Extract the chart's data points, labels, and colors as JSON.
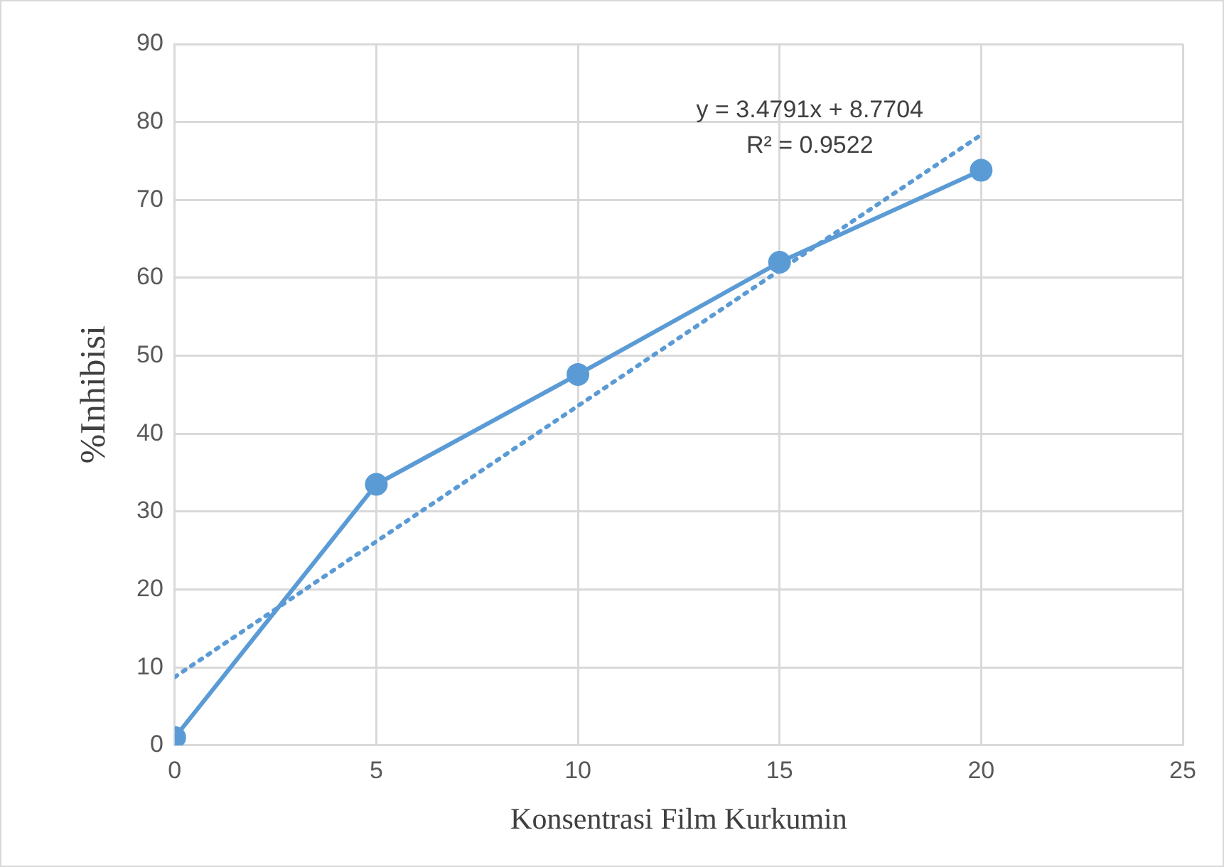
{
  "chart_data": {
    "type": "line",
    "xlabel": "Konsentrasi Film Kurkumin",
    "ylabel": "%Inhibisi",
    "x": [
      0,
      5,
      10,
      15,
      20
    ],
    "series": [
      {
        "color": "#5b9bd5",
        "values": [
          1.0,
          33.5,
          47.6,
          62.0,
          73.8
        ],
        "marker": "circle",
        "line_style": "solid"
      },
      {
        "type": "line",
        "color": "#5b9bd5",
        "x": [
          0,
          20
        ],
        "values": [
          8.77,
          78.35
        ],
        "marker": "none",
        "line_style": "dotted"
      }
    ],
    "xlim": [
      0,
      25
    ],
    "xticks": [
      0,
      5,
      10,
      15,
      20,
      25
    ],
    "ylim": [
      0,
      90
    ],
    "yticks": [
      0,
      10,
      20,
      30,
      40,
      50,
      60,
      70,
      80,
      90
    ],
    "grid": true,
    "legend": false,
    "annotations": [
      "y = 3.4791x + 8.7704",
      "R² = 0.9522"
    ]
  }
}
